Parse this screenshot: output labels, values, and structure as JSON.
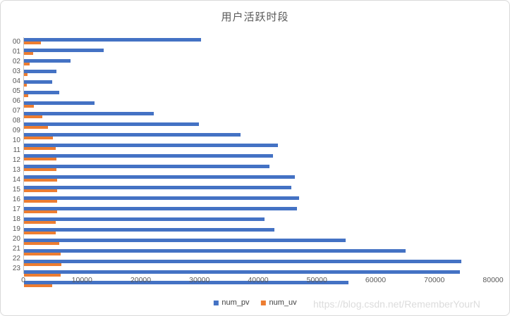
{
  "title": "用户活跃时段",
  "watermark": "https://blog.csdn.net/RememberYourN",
  "colors": {
    "num_pv": "#4472C4",
    "num_uv": "#ED7D31",
    "axis_text": "#595959",
    "title_text": "#595959",
    "legend_text": "#404040",
    "watermark_text": "#DCDCDC",
    "axis_line": "#C3C3C3",
    "chart_border": "#D9D9D9"
  },
  "chart_data": {
    "type": "bar",
    "orientation": "horizontal",
    "title": "用户活跃时段",
    "xlabel": "",
    "ylabel": "",
    "xlim": [
      0,
      80000
    ],
    "x_ticks": [
      0,
      10000,
      20000,
      30000,
      40000,
      50000,
      60000,
      70000,
      80000
    ],
    "grid": false,
    "legend_position": "bottom",
    "categories": [
      "00",
      "01",
      "02",
      "03",
      "04",
      "05",
      "06",
      "07",
      "08",
      "09",
      "10",
      "11",
      "12",
      "13",
      "14",
      "15",
      "16",
      "17",
      "18",
      "19",
      "20",
      "21",
      "22",
      "23"
    ],
    "series": [
      {
        "name": "num_pv",
        "color": "#4472C4",
        "values": [
          30200,
          13600,
          7900,
          5500,
          4850,
          5950,
          12000,
          22100,
          29800,
          36900,
          43300,
          42400,
          41800,
          46100,
          45500,
          46800,
          46500,
          41000,
          42600,
          54800,
          65000,
          74500,
          74200,
          55300
        ]
      },
      {
        "name": "num_uv",
        "color": "#ED7D31",
        "values": [
          2900,
          1550,
          950,
          650,
          500,
          720,
          1650,
          3100,
          4050,
          4900,
          5350,
          5500,
          5500,
          5700,
          5600,
          5700,
          5650,
          5450,
          5350,
          6000,
          6200,
          6400,
          6200,
          4800
        ]
      }
    ]
  }
}
